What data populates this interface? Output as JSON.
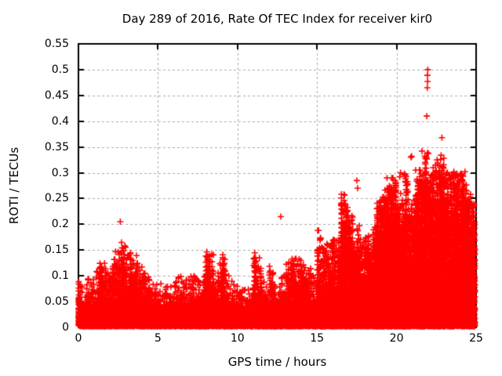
{
  "title": "Day 289 of 2016, Rate Of TEC Index for receiver kir0",
  "chart_data": {
    "type": "scatter",
    "title": "Day 289 of 2016, Rate Of TEC Index for receiver kir0",
    "xlabel": "GPS time / hours",
    "ylabel": "ROTI / TECUs",
    "xlim": [
      0,
      25
    ],
    "ylim": [
      0,
      0.55
    ],
    "xticks": [
      0,
      5,
      10,
      15,
      20,
      25
    ],
    "xtick_labels": [
      "0",
      "5",
      "10",
      "15",
      "20",
      "25"
    ],
    "yticks": [
      0,
      0.05,
      0.1,
      0.15,
      0.2,
      0.25,
      0.3,
      0.35,
      0.4,
      0.45,
      0.5,
      0.55
    ],
    "ytick_labels": [
      "0",
      "0.05",
      "0.1",
      "0.15",
      "0.2",
      "0.25",
      "0.3",
      "0.35",
      "0.4",
      "0.45",
      "0.5",
      "0.55"
    ],
    "grid": true,
    "grid_color": "#a8a8a8",
    "marker": "plus",
    "marker_color": "#ff0000",
    "series_name": "ROTI",
    "seed": 20161015,
    "base_band": {
      "max": 0.05,
      "density_per_bin": 125
    },
    "envelope_bins": {
      "bin_width_hours": 0.25,
      "max_roti": [
        0.09,
        0.06,
        0.095,
        0.1,
        0.11,
        0.13,
        0.125,
        0.11,
        0.14,
        0.175,
        0.165,
        0.16,
        0.14,
        0.155,
        0.145,
        0.12,
        0.12,
        0.11,
        0.09,
        0.085,
        0.088,
        0.08,
        0.085,
        0.08,
        0.095,
        0.1,
        0.095,
        0.1,
        0.105,
        0.1,
        0.095,
        0.1,
        0.15,
        0.145,
        0.11,
        0.135,
        0.145,
        0.1,
        0.09,
        0.09,
        0.08,
        0.075,
        0.078,
        0.08,
        0.145,
        0.14,
        0.09,
        0.085,
        0.12,
        0.1,
        0.09,
        0.1,
        0.13,
        0.135,
        0.14,
        0.135,
        0.13,
        0.12,
        0.115,
        0.1,
        0.19,
        0.165,
        0.16,
        0.17,
        0.17,
        0.175,
        0.26,
        0.25,
        0.22,
        0.16,
        0.2,
        0.16,
        0.18,
        0.15,
        0.2,
        0.25,
        0.26,
        0.27,
        0.28,
        0.29,
        0.25,
        0.26,
        0.3,
        0.24,
        0.26,
        0.31,
        0.3,
        0.34,
        0.3,
        0.31,
        0.32,
        0.33,
        0.3,
        0.3,
        0.3,
        0.3,
        0.3,
        0.28,
        0.26,
        0.24
      ]
    },
    "outliers": [
      [
        2.63,
        0.205
      ],
      [
        12.72,
        0.215
      ],
      [
        15.05,
        0.188
      ],
      [
        15.62,
        0.162
      ],
      [
        16.05,
        0.17
      ],
      [
        17.5,
        0.285
      ],
      [
        17.55,
        0.27
      ],
      [
        19.4,
        0.29
      ],
      [
        19.7,
        0.29
      ],
      [
        20.2,
        0.292
      ],
      [
        20.25,
        0.3
      ],
      [
        20.5,
        0.298
      ],
      [
        20.9,
        0.33
      ],
      [
        20.95,
        0.332
      ],
      [
        21.2,
        0.305
      ],
      [
        21.6,
        0.342
      ],
      [
        21.8,
        0.32
      ],
      [
        21.9,
        0.41
      ],
      [
        21.93,
        0.465
      ],
      [
        21.95,
        0.477
      ],
      [
        21.94,
        0.489
      ],
      [
        21.96,
        0.5
      ],
      [
        22.3,
        0.31
      ],
      [
        22.45,
        0.315
      ],
      [
        22.55,
        0.325
      ],
      [
        22.8,
        0.334
      ],
      [
        22.85,
        0.368
      ],
      [
        22.9,
        0.31
      ],
      [
        23.2,
        0.3
      ],
      [
        23.4,
        0.287
      ],
      [
        23.55,
        0.295
      ],
      [
        23.6,
        0.302
      ],
      [
        23.7,
        0.29
      ],
      [
        23.8,
        0.298
      ],
      [
        23.9,
        0.285
      ],
      [
        24.3,
        0.302
      ]
    ]
  }
}
